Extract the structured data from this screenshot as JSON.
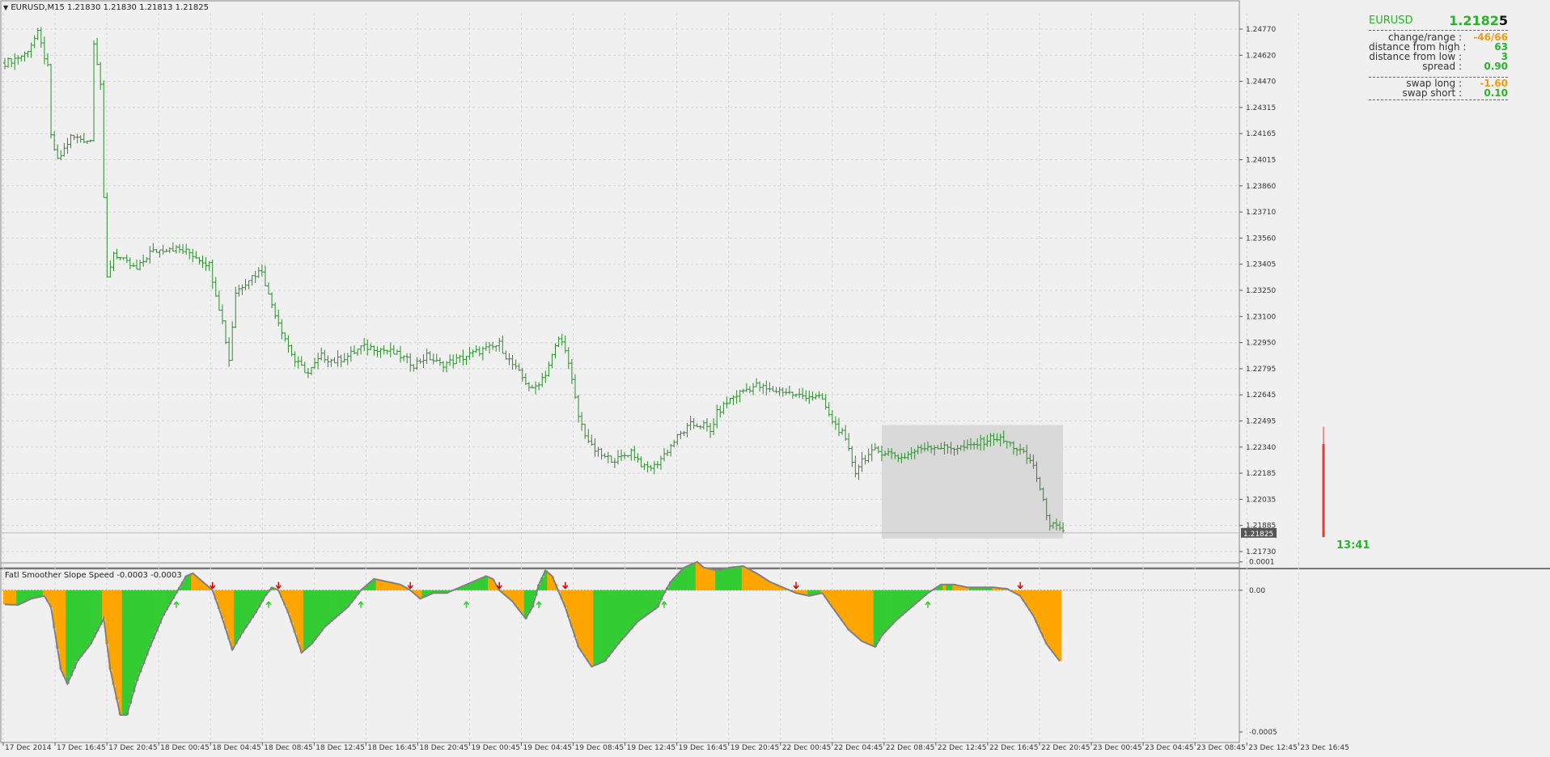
{
  "window": {
    "symbol_header": "EURUSD,M15",
    "ohlc": [
      "1.21830",
      "1.21830",
      "1.21813",
      "1.21825"
    ],
    "indicator_header": "Fatl Smoother Slope Speed -0.0003 -0.0003",
    "countdown": "13:41"
  },
  "info_panel": {
    "symbol": "EURUSD",
    "price_main": "1.2182",
    "price_pip": "5",
    "rows": [
      {
        "label": "change/range :",
        "value": "-46/66",
        "negative": true
      },
      {
        "label": "distance from high :",
        "value": "63",
        "negative": false
      },
      {
        "label": "distance from low :",
        "value": "3",
        "negative": false
      },
      {
        "label": "spread :",
        "value": "0.90",
        "negative": false
      }
    ],
    "swap_rows": [
      {
        "label": "swap long :",
        "value": "-1.60",
        "negative": true
      },
      {
        "label": "swap short :",
        "value": "0.10",
        "negative": false
      }
    ]
  },
  "colors": {
    "background": "#f0f0f0",
    "grid": "#d4d4d4",
    "bar": "#2e8b2e",
    "current_bar": "#e53935",
    "histo_up": "#33cc33",
    "histo_down": "#ffa500",
    "histo_line": "#808080",
    "arrow_up": "#33cc33",
    "arrow_down": "#e00000",
    "price_label_bg": "#555555",
    "range_box": "#d9d9d9"
  },
  "chart_data": [
    {
      "type": "ohlc-bar",
      "title": "EURUSD,M15",
      "y_ticks": [
        "1.24770",
        "1.24620",
        "1.24470",
        "1.24315",
        "1.24165",
        "1.24015",
        "1.23860",
        "1.23710",
        "1.23560",
        "1.23405",
        "1.23250",
        "1.23100",
        "1.22950",
        "1.22795",
        "1.22645",
        "1.22495",
        "1.22340",
        "1.22185",
        "1.22035",
        "1.21885",
        "1.21730"
      ],
      "ylim": [
        1.2166,
        1.2484
      ],
      "current_price": "1.21825",
      "x_ticks": [
        "17 Dec 2014",
        "17 Dec 16:45",
        "17 Dec 20:45",
        "18 Dec 00:45",
        "18 Dec 04:45",
        "18 Dec 08:45",
        "18 Dec 12:45",
        "18 Dec 16:45",
        "18 Dec 20:45",
        "19 Dec 00:45",
        "19 Dec 04:45",
        "19 Dec 08:45",
        "19 Dec 12:45",
        "19 Dec 16:45",
        "19 Dec 20:45",
        "22 Dec 00:45",
        "22 Dec 04:45",
        "22 Dec 08:45",
        "22 Dec 12:45",
        "22 Dec 16:45",
        "22 Dec 20:45",
        "23 Dec 00:45",
        "23 Dec 04:45",
        "23 Dec 08:45",
        "23 Dec 12:45",
        "23 Dec 16:45"
      ],
      "close_path": [
        [
          0,
          1.2455
        ],
        [
          6,
          1.246
        ],
        [
          10,
          1.2472
        ],
        [
          13,
          1.2452
        ],
        [
          14,
          1.2412
        ],
        [
          16,
          1.2398
        ],
        [
          20,
          1.2412
        ],
        [
          26,
          1.241
        ],
        [
          27,
          1.2468
        ],
        [
          29,
          1.2443
        ],
        [
          30,
          1.2375
        ],
        [
          31,
          1.233
        ],
        [
          33,
          1.2345
        ],
        [
          36,
          1.234
        ],
        [
          40,
          1.2335
        ],
        [
          44,
          1.2345
        ],
        [
          50,
          1.2348
        ],
        [
          56,
          1.2345
        ],
        [
          62,
          1.2338
        ],
        [
          66,
          1.2305
        ],
        [
          68,
          1.2283
        ],
        [
          70,
          1.2322
        ],
        [
          74,
          1.233
        ],
        [
          78,
          1.2335
        ],
        [
          80,
          1.232
        ],
        [
          84,
          1.23
        ],
        [
          88,
          1.2282
        ],
        [
          92,
          1.2275
        ],
        [
          96,
          1.2285
        ],
        [
          100,
          1.2282
        ],
        [
          104,
          1.2285
        ],
        [
          108,
          1.229
        ],
        [
          112,
          1.229
        ],
        [
          116,
          1.2288
        ],
        [
          120,
          1.2285
        ],
        [
          124,
          1.228
        ],
        [
          128,
          1.2285
        ],
        [
          132,
          1.228
        ],
        [
          136,
          1.2282
        ],
        [
          140,
          1.2285
        ],
        [
          144,
          1.2288
        ],
        [
          148,
          1.229
        ],
        [
          150,
          1.2292
        ],
        [
          152,
          1.2285
        ],
        [
          156,
          1.2275
        ],
        [
          160,
          1.2265
        ],
        [
          164,
          1.2275
        ],
        [
          166,
          1.2285
        ],
        [
          168,
          1.2295
        ],
        [
          170,
          1.229
        ],
        [
          172,
          1.227
        ],
        [
          174,
          1.225
        ],
        [
          176,
          1.224
        ],
        [
          178,
          1.2232
        ],
        [
          182,
          1.2226
        ],
        [
          186,
          1.2225
        ],
        [
          190,
          1.223
        ],
        [
          194,
          1.222
        ],
        [
          197,
          1.2221
        ],
        [
          200,
          1.2228
        ],
        [
          204,
          1.2238
        ],
        [
          208,
          1.2245
        ],
        [
          212,
          1.2245
        ],
        [
          214,
          1.2241
        ],
        [
          216,
          1.2252
        ],
        [
          220,
          1.226
        ],
        [
          224,
          1.2265
        ],
        [
          228,
          1.2268
        ],
        [
          232,
          1.2265
        ],
        [
          236,
          1.2265
        ],
        [
          240,
          1.2262
        ],
        [
          244,
          1.2262
        ],
        [
          248,
          1.226
        ],
        [
          250,
          1.225
        ],
        [
          254,
          1.224
        ],
        [
          256,
          1.223
        ],
        [
          258,
          1.2218
        ],
        [
          260,
          1.2225
        ],
        [
          264,
          1.223
        ],
        [
          268,
          1.2229
        ],
        [
          272,
          1.2226
        ],
        [
          276,
          1.223
        ],
        [
          280,
          1.2233
        ],
        [
          284,
          1.2232
        ],
        [
          288,
          1.2232
        ],
        [
          292,
          1.2232
        ],
        [
          296,
          1.2235
        ],
        [
          300,
          1.2238
        ],
        [
          304,
          1.2235
        ],
        [
          308,
          1.223
        ],
        [
          312,
          1.2222
        ],
        [
          315,
          1.22
        ],
        [
          317,
          1.2188
        ],
        [
          320,
          1.2184
        ],
        [
          321,
          1.2182
        ]
      ],
      "range_box": {
        "x_bars": [
          266,
          321
        ],
        "y": [
          1.2182,
          1.2245
        ]
      }
    },
    {
      "type": "histogram",
      "title": "Fatl Smoother Slope Speed",
      "y_ticks": [
        "0.0001",
        "0.00",
        "-0.0005"
      ],
      "ylim": [
        -0.00052,
        8.5e-05
      ],
      "line_path": [
        [
          0,
          -5e-05
        ],
        [
          4,
          -5.2e-05
        ],
        [
          8,
          -3e-05
        ],
        [
          12,
          -2e-05
        ],
        [
          14,
          -6e-05
        ],
        [
          17,
          -0.00028
        ],
        [
          19,
          -0.00033
        ],
        [
          22,
          -0.00025
        ],
        [
          26,
          -0.00019
        ],
        [
          30,
          -0.0001
        ],
        [
          32,
          -0.00028
        ],
        [
          35,
          -0.00044
        ],
        [
          37,
          -0.00044
        ],
        [
          40,
          -0.00032
        ],
        [
          44,
          -0.0002
        ],
        [
          48,
          -9e-05
        ],
        [
          52,
          -1e-05
        ],
        [
          55,
          5e-05
        ],
        [
          57,
          6e-05
        ],
        [
          60,
          3e-05
        ],
        [
          63,
          0.0
        ],
        [
          66,
          -0.0001
        ],
        [
          69,
          -0.00021
        ],
        [
          72,
          -0.00015
        ],
        [
          76,
          -8e-05
        ],
        [
          79,
          -2e-05
        ],
        [
          81,
          1e-05
        ],
        [
          83,
          0.0
        ],
        [
          86,
          -8e-05
        ],
        [
          90,
          -0.00022
        ],
        [
          93,
          -0.00019
        ],
        [
          97,
          -0.00013
        ],
        [
          100,
          -0.0001
        ],
        [
          104,
          -6e-05
        ],
        [
          106,
          -3e-05
        ],
        [
          108,
          0.0
        ],
        [
          112,
          4e-05
        ],
        [
          116,
          3e-05
        ],
        [
          120,
          2e-05
        ],
        [
          123,
          0.0
        ],
        [
          126,
          -3e-05
        ],
        [
          130,
          -1e-05
        ],
        [
          134,
          -1e-05
        ],
        [
          138,
          1e-05
        ],
        [
          142,
          3e-05
        ],
        [
          146,
          5e-05
        ],
        [
          148,
          4e-05
        ],
        [
          150,
          0.0
        ],
        [
          154,
          -4e-05
        ],
        [
          158,
          -0.0001
        ],
        [
          160,
          -6e-05
        ],
        [
          162,
          2e-05
        ],
        [
          164,
          7e-05
        ],
        [
          166,
          5e-05
        ],
        [
          170,
          -6e-05
        ],
        [
          174,
          -0.0002
        ],
        [
          178,
          -0.00027
        ],
        [
          182,
          -0.00025
        ],
        [
          186,
          -0.00019
        ],
        [
          192,
          -0.00011
        ],
        [
          198,
          -6e-05
        ],
        [
          200,
          -1e-05
        ],
        [
          202,
          3e-05
        ],
        [
          206,
          8e-05
        ],
        [
          210,
          0.0001
        ],
        [
          212,
          8e-05
        ],
        [
          216,
          7e-05
        ],
        [
          220,
          8e-05
        ],
        [
          224,
          8.5e-05
        ],
        [
          228,
          6e-05
        ],
        [
          232,
          3e-05
        ],
        [
          236,
          1e-05
        ],
        [
          240,
          -1e-05
        ],
        [
          244,
          -2e-05
        ],
        [
          248,
          -1e-05
        ],
        [
          251,
          -6e-05
        ],
        [
          256,
          -0.00014
        ],
        [
          260,
          -0.00018
        ],
        [
          264,
          -0.0002
        ],
        [
          266,
          -0.00016
        ],
        [
          270,
          -0.00011
        ],
        [
          275,
          -6e-05
        ],
        [
          280,
          -1e-05
        ],
        [
          284,
          2e-05
        ],
        [
          288,
          2e-05
        ],
        [
          292,
          1e-05
        ],
        [
          296,
          1e-05
        ],
        [
          300,
          1e-05
        ],
        [
          304,
          5e-06
        ],
        [
          308,
          -2e-05
        ],
        [
          312,
          -9e-05
        ],
        [
          316,
          -0.00019
        ],
        [
          320,
          -0.00025
        ]
      ],
      "up_arrows": [
        52,
        80,
        108,
        140,
        162,
        200,
        280
      ],
      "down_arrows": [
        63,
        83,
        123,
        150,
        170,
        240,
        308
      ]
    }
  ]
}
